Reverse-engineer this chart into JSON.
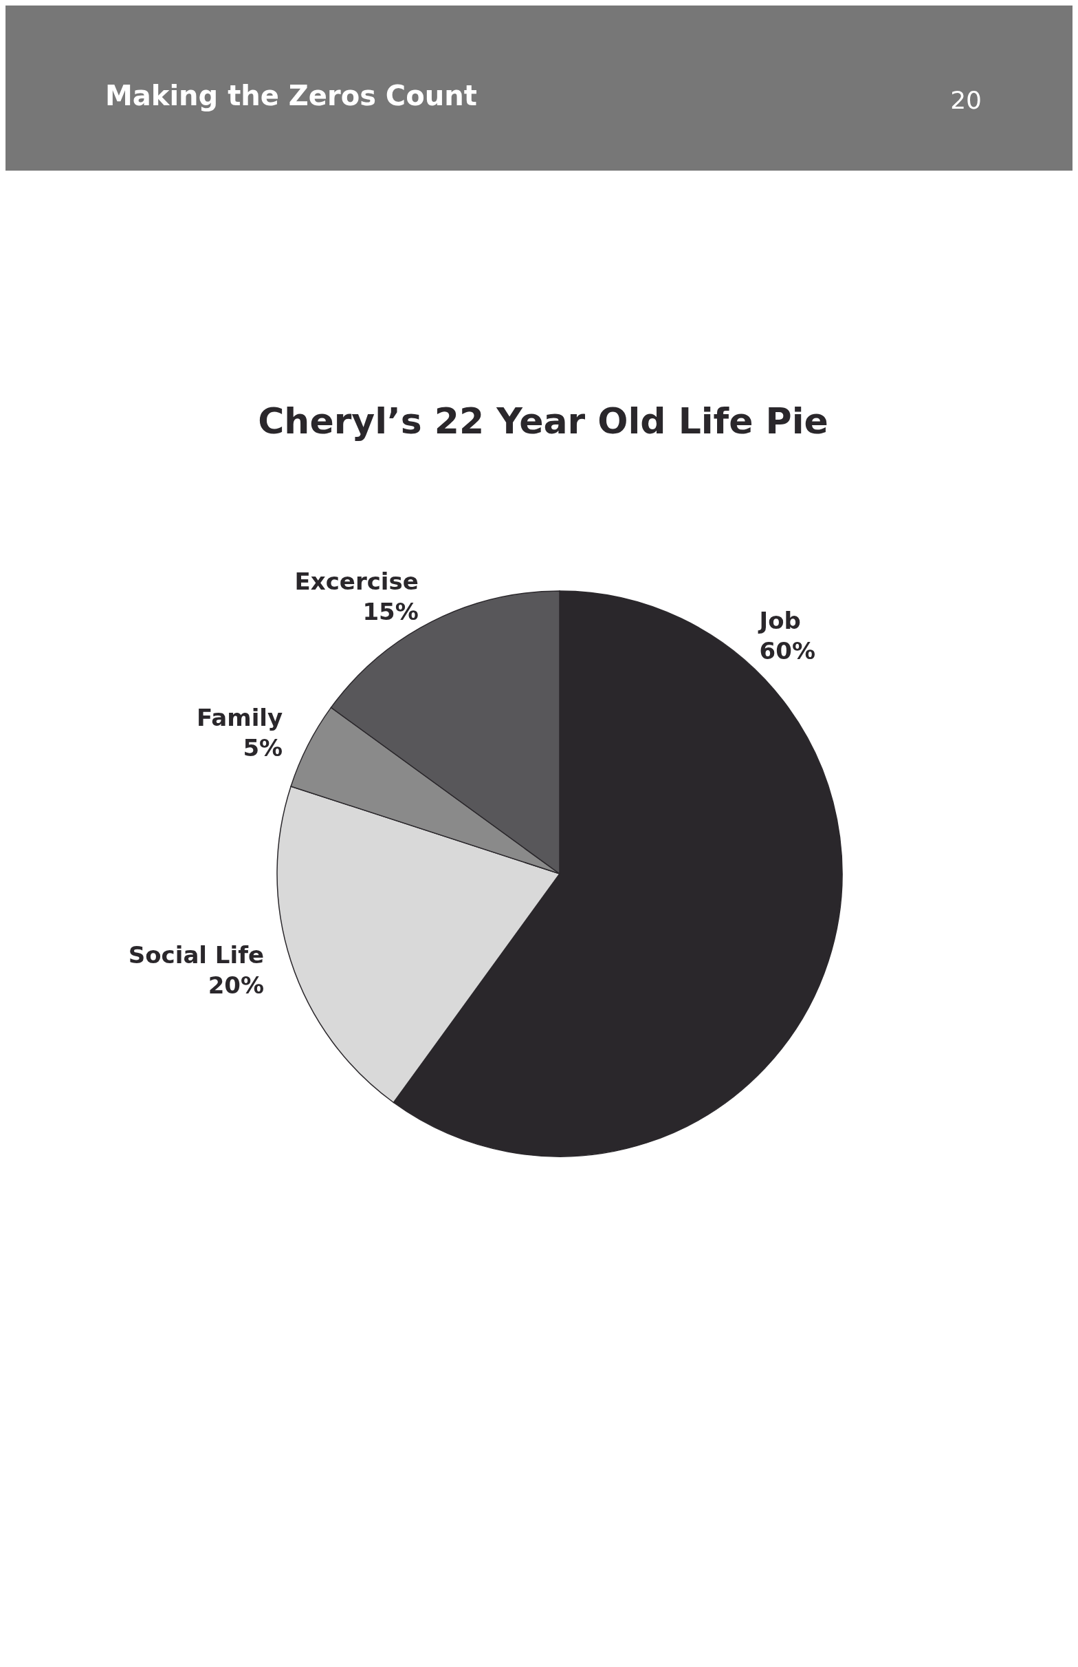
{
  "chart_data": {
    "type": "pie",
    "title": "Cheryl’s 22 Year Old Life Pie",
    "categories": [
      "Job",
      "Social Life",
      "Family",
      "Excercise"
    ],
    "values": [
      60,
      20,
      5,
      15
    ],
    "colors": [
      "#2a272b",
      "#d9d9d9",
      "#8a8a8a",
      "#58575a"
    ],
    "value_labels": [
      "60%",
      "20%",
      "5%",
      "15%"
    ],
    "annotations": [
      "Making the Zeros Count",
      "20"
    ]
  }
}
